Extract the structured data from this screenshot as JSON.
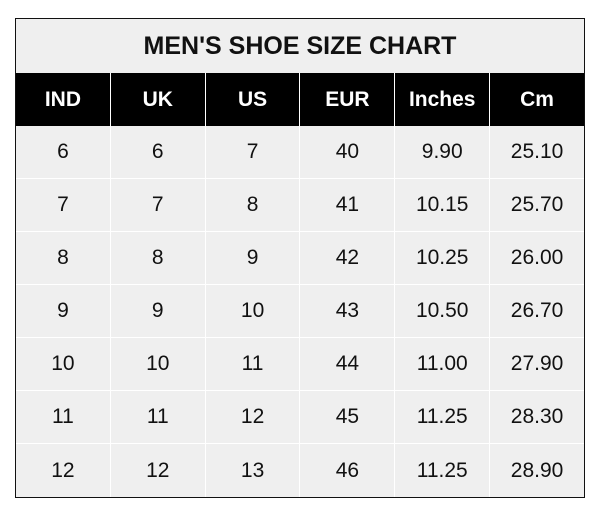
{
  "title": "MEN'S SHOE SIZE CHART",
  "headers": [
    "IND",
    "UK",
    "US",
    "EUR",
    "Inches",
    "Cm"
  ],
  "rows": [
    [
      "6",
      "6",
      "7",
      "40",
      "9.90",
      "25.10"
    ],
    [
      "7",
      "7",
      "8",
      "41",
      "10.15",
      "25.70"
    ],
    [
      "8",
      "8",
      "9",
      "42",
      "10.25",
      "26.00"
    ],
    [
      "9",
      "9",
      "10",
      "43",
      "10.50",
      "26.70"
    ],
    [
      "10",
      "10",
      "11",
      "44",
      "11.00",
      "27.90"
    ],
    [
      "11",
      "11",
      "12",
      "45",
      "11.25",
      "28.30"
    ],
    [
      "12",
      "12",
      "13",
      "46",
      "11.25",
      "28.90"
    ]
  ],
  "colors": {
    "header_bg": "#000000",
    "cell_bg": "#efefef",
    "grid": "#ffffff"
  }
}
